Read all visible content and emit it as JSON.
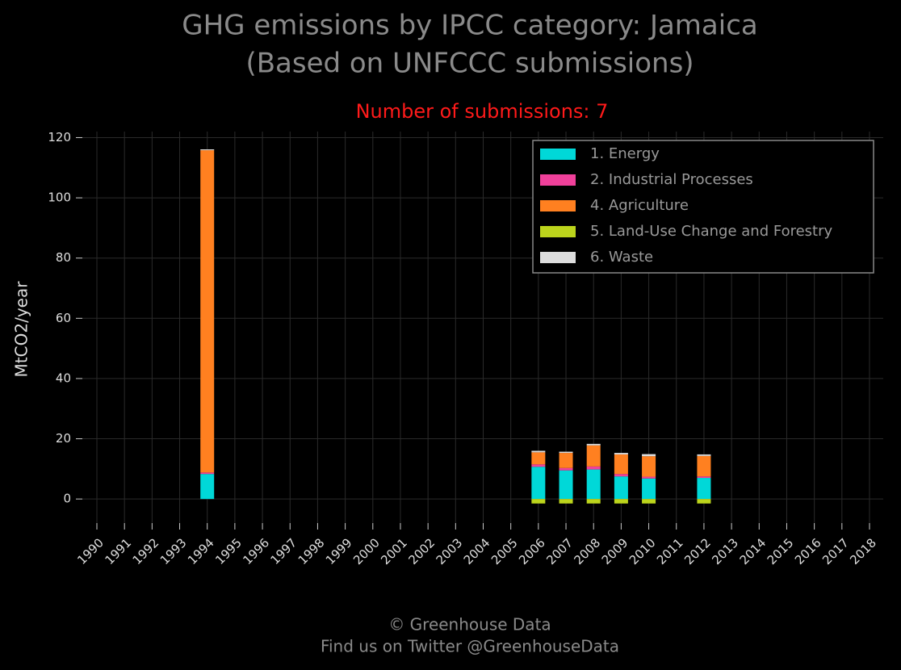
{
  "chart_data": {
    "type": "bar",
    "stacked": true,
    "title": [
      "GHG emissions by IPCC category: Jamaica",
      "(Based on UNFCCC submissions)"
    ],
    "subtitle": "Number of submissions: 7",
    "y_label": "MtCO2/year",
    "footer": [
      "© Greenhouse Data",
      "Find us on Twitter @GreenhouseData"
    ],
    "categories": [
      "1990",
      "1991",
      "1992",
      "1993",
      "1994",
      "1995",
      "1996",
      "1997",
      "1998",
      "1999",
      "2000",
      "2001",
      "2002",
      "2003",
      "2004",
      "2005",
      "2006",
      "2007",
      "2008",
      "2009",
      "2010",
      "2011",
      "2012",
      "2013",
      "2014",
      "2015",
      "2016",
      "2017",
      "2018"
    ],
    "series": [
      {
        "name": "1. Energy",
        "color": "#00d8d8",
        "values": [
          null,
          null,
          null,
          null,
          8.3,
          null,
          null,
          null,
          null,
          null,
          null,
          null,
          null,
          null,
          null,
          null,
          10.7,
          9.5,
          9.8,
          7.5,
          6.8,
          null,
          7,
          null,
          null,
          null,
          null,
          null,
          null
        ]
      },
      {
        "name": "2. Industrial Processes",
        "color": "#f0409a",
        "values": [
          null,
          null,
          null,
          null,
          0.5,
          null,
          null,
          null,
          null,
          null,
          null,
          null,
          null,
          null,
          null,
          null,
          0.8,
          0.8,
          1,
          0.8,
          0.6,
          null,
          0.5,
          null,
          null,
          null,
          null,
          null,
          null
        ]
      },
      {
        "name": "4. Agriculture",
        "color": "#ff8020",
        "values": [
          null,
          null,
          null,
          null,
          107,
          null,
          null,
          null,
          null,
          null,
          null,
          null,
          null,
          null,
          null,
          null,
          4,
          5,
          7,
          6.5,
          6.8,
          null,
          6.8,
          null,
          null,
          null,
          null,
          null,
          null
        ]
      },
      {
        "name": "5. Land-Use Change and Forestry",
        "color": "#bcd41c",
        "values": [
          null,
          null,
          null,
          null,
          null,
          null,
          null,
          null,
          null,
          null,
          null,
          null,
          null,
          null,
          null,
          null,
          -1.5,
          -1.5,
          -1.5,
          -1.5,
          -1.5,
          null,
          -1.5,
          null,
          null,
          null,
          null,
          null,
          null
        ]
      },
      {
        "name": "6. Waste",
        "color": "#dddddd",
        "values": [
          null,
          null,
          null,
          null,
          0.3,
          null,
          null,
          null,
          null,
          null,
          null,
          null,
          null,
          null,
          null,
          null,
          0.5,
          0.4,
          0.5,
          0.5,
          0.7,
          null,
          0.5,
          null,
          null,
          null,
          null,
          null,
          null
        ]
      }
    ],
    "ylim": [
      -8,
      122
    ],
    "yticks": [
      0,
      20,
      40,
      60,
      80,
      100,
      120
    ],
    "grid": true,
    "legend": "upper right"
  }
}
